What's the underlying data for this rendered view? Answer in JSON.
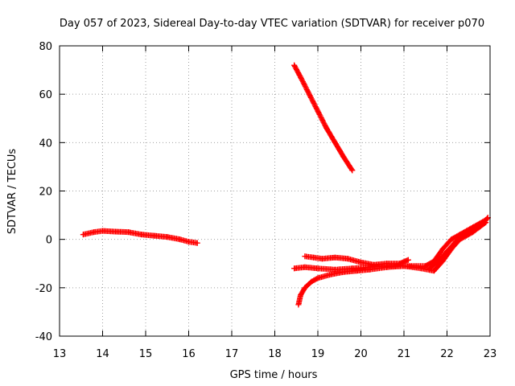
{
  "chart_data": {
    "type": "scatter",
    "title": "Day 057 of 2023, Sidereal Day-to-day VTEC variation (SDTVAR) for receiver p070",
    "xlabel": "GPS time / hours",
    "ylabel": "SDTVAR / TECUs",
    "xlim": [
      13,
      23
    ],
    "ylim": [
      -40,
      80
    ],
    "xticks": [
      13,
      14,
      15,
      16,
      17,
      18,
      19,
      20,
      21,
      22,
      23
    ],
    "xtick_labels": [
      "13",
      "14",
      "15",
      "16",
      "17",
      "18",
      "19",
      "20",
      "21",
      "22",
      "23"
    ],
    "yticks": [
      -40,
      -20,
      0,
      20,
      40,
      60,
      80
    ],
    "ytick_labels": [
      "-40",
      "-20",
      "0",
      "20",
      "40",
      "60",
      "80"
    ],
    "grid": true,
    "marker": "+",
    "color": "#ff0000",
    "series": [
      {
        "name": "arc-1",
        "x": [
          13.55,
          13.8,
          14.0,
          14.3,
          14.6,
          14.9,
          15.2,
          15.5,
          15.8,
          16.0,
          16.2
        ],
        "y": [
          2.0,
          3.0,
          3.5,
          3.2,
          3.0,
          2.0,
          1.5,
          1.0,
          0.0,
          -1.0,
          -1.5
        ]
      },
      {
        "name": "arc-2",
        "x": [
          18.45,
          18.6,
          18.8,
          19.0,
          19.2,
          19.4,
          19.6,
          19.8
        ],
        "y": [
          72.0,
          67.0,
          60.0,
          53.0,
          46.0,
          40.0,
          34.0,
          28.5
        ]
      },
      {
        "name": "arc-3",
        "x": [
          18.55,
          18.6,
          18.7,
          18.85,
          19.0,
          19.3,
          19.6,
          19.9,
          20.2,
          20.6,
          21.0,
          21.4,
          21.7,
          21.9,
          22.1,
          22.3,
          22.6,
          22.9
        ],
        "y": [
          -27.0,
          -23.0,
          -20.0,
          -17.5,
          -16.0,
          -14.5,
          -13.5,
          -13.0,
          -12.5,
          -11.5,
          -11.0,
          -12.0,
          -13.0,
          -9.0,
          -4.0,
          0.0,
          3.0,
          7.0
        ]
      },
      {
        "name": "arc-4",
        "x": [
          18.45,
          18.7,
          19.0,
          19.4,
          19.8,
          20.2,
          20.6,
          21.0,
          21.5,
          21.7,
          21.9,
          22.1,
          22.3,
          22.6,
          22.9
        ],
        "y": [
          -12.0,
          -11.5,
          -12.0,
          -12.5,
          -12.0,
          -11.5,
          -11.0,
          -11.0,
          -11.0,
          -9.0,
          -4.0,
          0.0,
          2.0,
          5.0,
          8.0
        ]
      },
      {
        "name": "arc-5",
        "x": [
          18.7,
          18.9,
          19.1,
          19.4,
          19.7,
          20.0,
          20.3,
          20.6,
          20.9,
          21.1
        ],
        "y": [
          -7.0,
          -7.5,
          -8.0,
          -7.5,
          -8.0,
          -9.5,
          -10.5,
          -10.0,
          -10.0,
          -8.5
        ]
      },
      {
        "name": "arc-6",
        "x": [
          21.6,
          21.8,
          22.0,
          22.2,
          22.4,
          22.6,
          22.8,
          22.95
        ],
        "y": [
          -12.0,
          -9.0,
          -5.0,
          -1.0,
          2.0,
          4.0,
          6.0,
          9.0
        ]
      }
    ]
  }
}
